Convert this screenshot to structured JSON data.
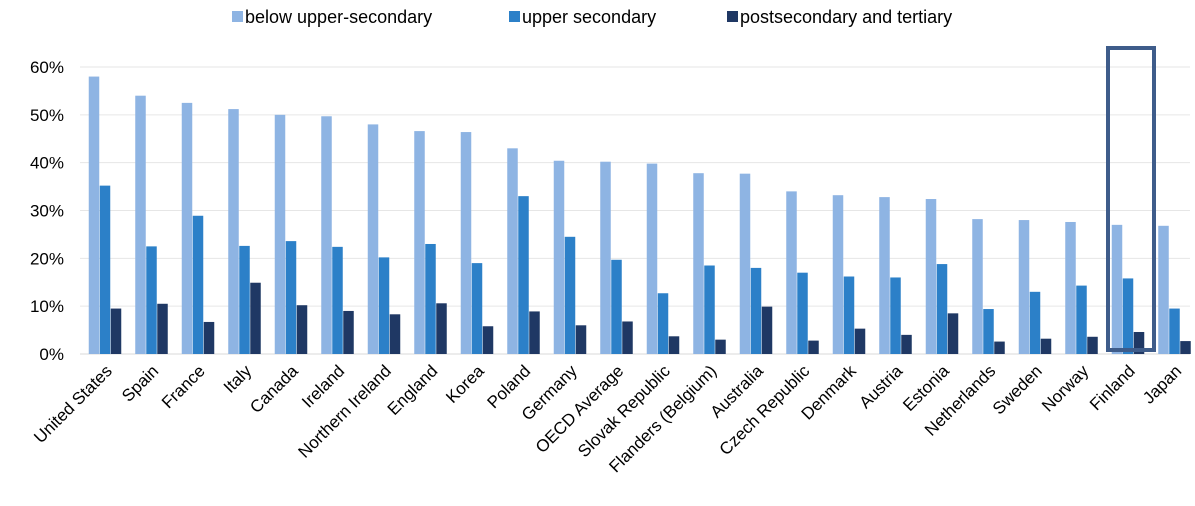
{
  "chart_data": {
    "type": "bar",
    "categories": [
      "United States",
      "Spain",
      "France",
      "Italy",
      "Canada",
      "Ireland",
      "Northern Ireland",
      "England",
      "Korea",
      "Poland",
      "Germany",
      "OECD Average",
      "Slovak Republic",
      "Flanders (Belgium)",
      "Australia",
      "Czech Republic",
      "Denmark",
      "Austria",
      "Estonia",
      "Netherlands",
      "Sweden",
      "Norway",
      "Finland",
      "Japan"
    ],
    "series": [
      {
        "name": "below upper-secondary",
        "color": "#8eb4e3",
        "values": [
          0.58,
          0.54,
          0.525,
          0.512,
          0.5,
          0.497,
          0.48,
          0.466,
          0.464,
          0.43,
          0.404,
          0.402,
          0.398,
          0.378,
          0.377,
          0.34,
          0.332,
          0.328,
          0.324,
          0.282,
          0.28,
          0.276,
          0.27,
          0.268
        ]
      },
      {
        "name": "upper secondary",
        "color": "#2c80c8",
        "values": [
          0.352,
          0.225,
          0.289,
          0.226,
          0.236,
          0.224,
          0.202,
          0.23,
          0.19,
          0.33,
          0.245,
          0.197,
          0.127,
          0.185,
          0.18,
          0.17,
          0.162,
          0.16,
          0.188,
          0.094,
          0.13,
          0.143,
          0.158,
          0.095
        ]
      },
      {
        "name": "postsecondary and tertiary",
        "color": "#1f3864",
        "values": [
          0.095,
          0.105,
          0.067,
          0.149,
          0.102,
          0.09,
          0.083,
          0.106,
          0.058,
          0.089,
          0.06,
          0.068,
          0.037,
          0.03,
          0.099,
          0.028,
          0.053,
          0.04,
          0.085,
          0.026,
          0.032,
          0.036,
          0.046,
          0.027
        ]
      }
    ],
    "yticks": [
      "0%",
      "10%",
      "20%",
      "30%",
      "40%",
      "50%",
      "60%"
    ],
    "ylim": [
      0,
      0.6
    ],
    "highlight": {
      "category": "Finland",
      "color": "#3e5c8a"
    },
    "legend_position": "top",
    "grid": true
  }
}
